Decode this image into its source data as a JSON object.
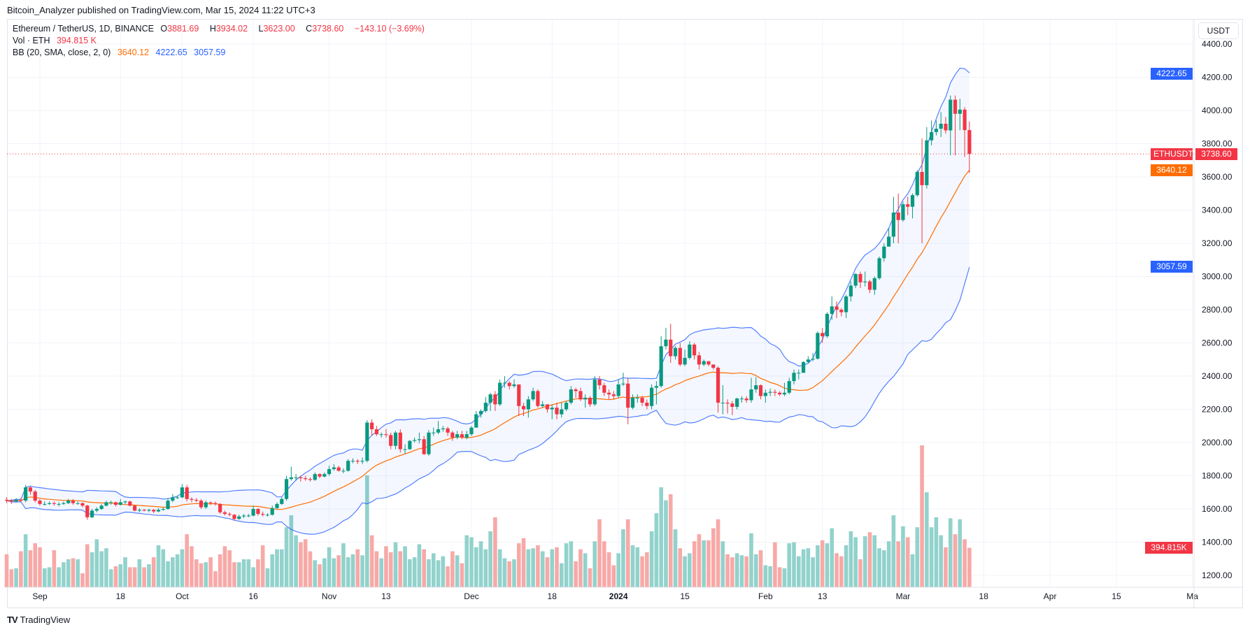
{
  "header": {
    "published": "Bitcoin_Analyzer published on TradingView.com, Mar 15, 2024 11:22 UTC+3"
  },
  "legend": {
    "symbol": "Ethereum / TetherUS, 1D, BINANCE",
    "o_label": "O",
    "o": "3881.69",
    "h_label": "H",
    "h": "3934.02",
    "l_label": "L",
    "l": "3623.00",
    "c_label": "C",
    "c": "3738.60",
    "change": "−143.10 (−3.69%)",
    "vol_label": "Vol · ETH",
    "vol": "394.815 K",
    "bb_label": "BB (20, SMA, close, 2, 0)",
    "bb_basis": "3640.12",
    "bb_upper": "4222.65",
    "bb_lower": "3057.59"
  },
  "price_axis": {
    "unit": "USDT"
  },
  "tags": {
    "upper": "4222.65",
    "last": "3738.60",
    "symbol": "ETHUSDT",
    "basis": "3640.12",
    "lower": "3057.59",
    "volume": "394.815K"
  },
  "footer": {
    "brand": "TradingView",
    "logo_glyph": "TV"
  },
  "colors": {
    "up": "#089981",
    "down": "#f23645",
    "vol_up": "#92d2cc",
    "vol_down": "#f7a9a7",
    "bb_band": "#2962ff",
    "bb_basis": "#ff6d00",
    "upper_tag": "#2962ff",
    "basis_tag": "#ff6d00",
    "last_tag": "#f23645"
  },
  "chart_data": {
    "type": "candlestick",
    "symbol": "ETHUSDT",
    "interval": "1D",
    "first_candle_date": "2023-08-25",
    "first_open": 1655,
    "ylim": [
      1100,
      4480
    ],
    "grid": true,
    "price_ticks": [
      1200,
      1400,
      1600,
      1800,
      2000,
      2200,
      2400,
      2600,
      2800,
      3000,
      3200,
      3400,
      3600,
      3800,
      4000,
      4200,
      4400
    ],
    "date_ticks": [
      {
        "label": "Sep",
        "date": "2023-09-01"
      },
      {
        "label": "18",
        "date": "2023-09-18"
      },
      {
        "label": "Oct",
        "date": "2023-10-01"
      },
      {
        "label": "16",
        "date": "2023-10-16"
      },
      {
        "label": "Nov",
        "date": "2023-11-01"
      },
      {
        "label": "13",
        "date": "2023-11-13"
      },
      {
        "label": "Dec",
        "date": "2023-12-01"
      },
      {
        "label": "18",
        "date": "2023-12-18"
      },
      {
        "label": "2024",
        "date": "2024-01-01",
        "bold": true
      },
      {
        "label": "15",
        "date": "2024-01-15"
      },
      {
        "label": "Feb",
        "date": "2024-02-01"
      },
      {
        "label": "13",
        "date": "2024-02-13"
      },
      {
        "label": "Mar",
        "date": "2024-03-01"
      },
      {
        "label": "18",
        "date": "2024-03-18"
      },
      {
        "label": "Apr",
        "date": "2024-04-01"
      },
      {
        "label": "15",
        "date": "2024-04-15"
      },
      {
        "label": "Ma",
        "date": "2024-05-01"
      }
    ],
    "bb_params": {
      "length": 20,
      "ma": "SMA",
      "source": "close",
      "mult": 2
    },
    "close": [
      1650,
      1645,
      1655,
      1650,
      1730,
      1705,
      1650,
      1630,
      1630,
      1635,
      1630,
      1630,
      1635,
      1650,
      1635,
      1635,
      1620,
      1550,
      1590,
      1600,
      1620,
      1640,
      1640,
      1625,
      1640,
      1645,
      1620,
      1590,
      1595,
      1590,
      1595,
      1585,
      1595,
      1600,
      1650,
      1670,
      1670,
      1730,
      1660,
      1655,
      1650,
      1610,
      1640,
      1635,
      1630,
      1580,
      1570,
      1565,
      1540,
      1555,
      1560,
      1560,
      1600,
      1570,
      1565,
      1565,
      1605,
      1630,
      1660,
      1780,
      1790,
      1790,
      1785,
      1780,
      1775,
      1810,
      1795,
      1810,
      1840,
      1850,
      1830,
      1830,
      1890,
      1890,
      1885,
      1890,
      2120,
      2080,
      2050,
      2050,
      2045,
      1980,
      2060,
      1960,
      1960,
      2010,
      2015,
      2020,
      1930,
      2060,
      2060,
      2080,
      2085,
      2060,
      2030,
      2050,
      2030,
      2050,
      2090,
      2170,
      2190,
      2240,
      2290,
      2230,
      2360,
      2360,
      2340,
      2350,
      2220,
      2200,
      2260,
      2310,
      2220,
      2230,
      2200,
      2210,
      2170,
      2200,
      2240,
      2320,
      2310,
      2260,
      2270,
      2230,
      2380,
      2345,
      2300,
      2290,
      2280,
      2350,
      2355,
      2210,
      2270,
      2270,
      2240,
      2220,
      2330,
      2340,
      2580,
      2620,
      2520,
      2570,
      2470,
      2510,
      2590,
      2525,
      2470,
      2490,
      2470,
      2450,
      2240,
      2240,
      2235,
      2215,
      2265,
      2265,
      2255,
      2320,
      2345,
      2280,
      2300,
      2305,
      2300,
      2290,
      2300,
      2370,
      2420,
      2420,
      2485,
      2500,
      2505,
      2660,
      2640,
      2775,
      2820,
      2800,
      2785,
      2880,
      2945,
      3015,
      2965,
      2970,
      2920,
      2990,
      3110,
      3180,
      3240,
      3385,
      3340,
      3435,
      3420,
      3490,
      3630,
      3550,
      3820,
      3870,
      3890,
      3920,
      3880,
      4065,
      3980,
      4005,
      3881.69,
      3738.6
    ],
    "high": [
      1670,
      1660,
      1665,
      1665,
      1745,
      1735,
      1715,
      1660,
      1645,
      1645,
      1645,
      1640,
      1645,
      1660,
      1660,
      1645,
      1640,
      1625,
      1600,
      1610,
      1630,
      1650,
      1650,
      1645,
      1660,
      1650,
      1650,
      1625,
      1605,
      1600,
      1600,
      1600,
      1605,
      1610,
      1665,
      1690,
      1680,
      1750,
      1745,
      1670,
      1665,
      1660,
      1650,
      1645,
      1645,
      1635,
      1590,
      1580,
      1570,
      1565,
      1570,
      1570,
      1620,
      1605,
      1585,
      1575,
      1620,
      1640,
      1670,
      1800,
      1855,
      1810,
      1800,
      1800,
      1790,
      1820,
      1815,
      1820,
      1860,
      1870,
      1860,
      1845,
      1900,
      1905,
      1900,
      1910,
      2135,
      2140,
      2100,
      2060,
      2080,
      2060,
      2070,
      2080,
      1990,
      2015,
      2030,
      2060,
      2040,
      2075,
      2090,
      2130,
      2100,
      2095,
      2070,
      2070,
      2070,
      2070,
      2100,
      2190,
      2200,
      2275,
      2300,
      2310,
      2380,
      2400,
      2370,
      2380,
      2350,
      2240,
      2280,
      2330,
      2320,
      2250,
      2230,
      2230,
      2240,
      2240,
      2250,
      2340,
      2330,
      2330,
      2290,
      2280,
      2400,
      2400,
      2360,
      2320,
      2310,
      2380,
      2420,
      2390,
      2290,
      2290,
      2280,
      2260,
      2350,
      2370,
      2640,
      2690,
      2715,
      2580,
      2600,
      2560,
      2610,
      2600,
      2545,
      2500,
      2490,
      2470,
      2460,
      2345,
      2260,
      2250,
      2270,
      2280,
      2280,
      2390,
      2395,
      2350,
      2320,
      2325,
      2320,
      2310,
      2360,
      2390,
      2440,
      2440,
      2490,
      2520,
      2540,
      2670,
      2690,
      2785,
      2880,
      2850,
      2810,
      2890,
      2970,
      3020,
      3030,
      3030,
      2980,
      3000,
      3120,
      3200,
      3290,
      3480,
      3500,
      3450,
      3480,
      3500,
      3640,
      3830,
      3900,
      3940,
      3940,
      3990,
      3960,
      4090,
      4090,
      4070,
      4020,
      3934.02
    ],
    "low": [
      1635,
      1630,
      1640,
      1640,
      1640,
      1685,
      1640,
      1620,
      1620,
      1625,
      1620,
      1615,
      1625,
      1630,
      1625,
      1625,
      1610,
      1535,
      1545,
      1580,
      1595,
      1615,
      1625,
      1615,
      1620,
      1630,
      1615,
      1585,
      1580,
      1585,
      1580,
      1575,
      1580,
      1590,
      1595,
      1640,
      1660,
      1665,
      1645,
      1640,
      1640,
      1600,
      1600,
      1625,
      1620,
      1570,
      1560,
      1555,
      1530,
      1535,
      1545,
      1550,
      1555,
      1560,
      1555,
      1555,
      1560,
      1600,
      1625,
      1650,
      1770,
      1770,
      1765,
      1770,
      1765,
      1770,
      1785,
      1790,
      1800,
      1830,
      1825,
      1815,
      1825,
      1875,
      1870,
      1870,
      1880,
      2040,
      2040,
      2030,
      2030,
      1960,
      1960,
      1940,
      1930,
      1955,
      2000,
      1995,
      1925,
      1920,
      2040,
      2050,
      2065,
      2040,
      2010,
      2020,
      2020,
      2020,
      2040,
      2090,
      2150,
      2180,
      2190,
      2190,
      2220,
      2330,
      2320,
      2330,
      2160,
      2160,
      2150,
      2250,
      2210,
      2210,
      2180,
      2140,
      2140,
      2150,
      2190,
      2230,
      2270,
      2250,
      2210,
      2215,
      2220,
      2320,
      2280,
      2260,
      2260,
      2270,
      2340,
      2110,
      2200,
      2240,
      2220,
      2200,
      2200,
      2230,
      2330,
      2560,
      2480,
      2500,
      2460,
      2460,
      2500,
      2500,
      2440,
      2460,
      2460,
      2440,
      2180,
      2170,
      2175,
      2165,
      2200,
      2240,
      2240,
      2240,
      2300,
      2260,
      2240,
      2280,
      2280,
      2280,
      2280,
      2290,
      2350,
      2380,
      2420,
      2480,
      2490,
      2500,
      2600,
      2630,
      2740,
      2750,
      2760,
      2750,
      2850,
      2930,
      2930,
      2940,
      2900,
      2890,
      2980,
      3090,
      3180,
      3200,
      3200,
      3330,
      3370,
      3350,
      3480,
      3200,
      3530,
      3790,
      3850,
      3840,
      3860,
      3730,
      3730,
      3880,
      3720,
      3623
    ],
    "volume_k": [
      330,
      180,
      190,
      360,
      530,
      370,
      440,
      400,
      190,
      200,
      370,
      200,
      250,
      280,
      290,
      280,
      140,
      430,
      350,
      480,
      360,
      390,
      180,
      210,
      230,
      300,
      200,
      200,
      280,
      200,
      230,
      300,
      420,
      380,
      260,
      300,
      330,
      380,
      530,
      410,
      280,
      240,
      250,
      300,
      160,
      330,
      410,
      370,
      250,
      250,
      280,
      280,
      200,
      280,
      420,
      190,
      330,
      380,
      380,
      600,
      720,
      520,
      450,
      480,
      360,
      270,
      230,
      290,
      400,
      290,
      320,
      440,
      300,
      330,
      380,
      320,
      1120,
      520,
      360,
      290,
      410,
      350,
      450,
      360,
      410,
      280,
      300,
      430,
      380,
      280,
      340,
      270,
      310,
      210,
      360,
      320,
      240,
      520,
      500,
      400,
      460,
      380,
      560,
      700,
      380,
      290,
      260,
      280,
      440,
      490,
      380,
      390,
      420,
      360,
      300,
      380,
      400,
      240,
      440,
      460,
      260,
      380,
      340,
      190,
      460,
      680,
      460,
      350,
      220,
      340,
      580,
      680,
      420,
      400,
      310,
      350,
      560,
      740,
      1000,
      870,
      930,
      580,
      390,
      310,
      340,
      460,
      530,
      470,
      470,
      590,
      680,
      460,
      330,
      300,
      340,
      320,
      310,
      540,
      330,
      370,
      220,
      210,
      450,
      200,
      190,
      440,
      450,
      310,
      380,
      390,
      300,
      420,
      470,
      440,
      590,
      340,
      310,
      420,
      560,
      500,
      280,
      510,
      550,
      520,
      390,
      370,
      460,
      720,
      460,
      610,
      500,
      330,
      600,
      1420,
      950,
      600,
      700,
      520,
      400,
      690,
      530,
      680,
      480,
      394.815
    ]
  }
}
